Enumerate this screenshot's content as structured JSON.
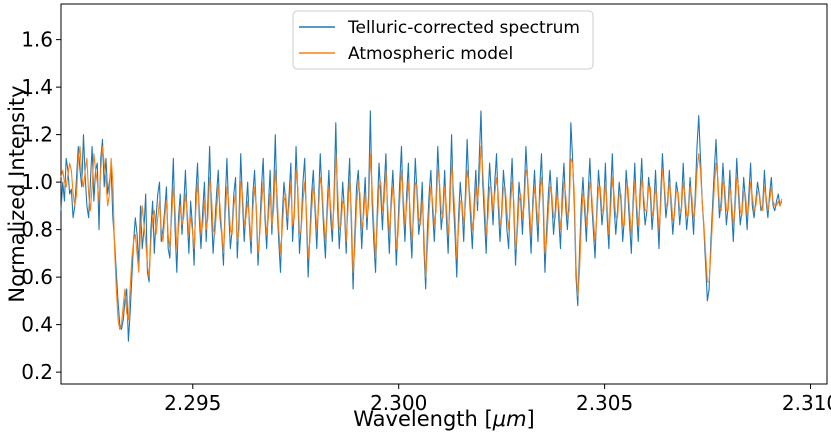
{
  "chart_data": {
    "type": "line",
    "title": "",
    "xlabel_text": "Wavelength [",
    "xlabel_unit": "μm",
    "xlabel_close": "]",
    "ylabel": "Normalized Intensity",
    "xlim": [
      2.2918,
      2.3104
    ],
    "ylim": [
      0.15,
      1.75
    ],
    "xticks": [
      2.295,
      2.3,
      2.305,
      2.31
    ],
    "xtick_labels": [
      "2.295",
      "2.300",
      "2.305",
      "2.310"
    ],
    "yticks": [
      0.2,
      0.4,
      0.6,
      0.8,
      1.0,
      1.2,
      1.4,
      1.6
    ],
    "ytick_labels": [
      "0.2",
      "0.4",
      "0.6",
      "0.8",
      "1.0",
      "1.2",
      "1.4",
      "1.6"
    ],
    "legend_position": "upper-center",
    "x_range": [
      2.2918,
      2.3093
    ],
    "num_points": 440,
    "series": [
      {
        "name": "Telluric-corrected spectrum",
        "color": "#1f77b4",
        "values": [
          0.88,
          1.0,
          0.92,
          1.1,
          1.05,
          0.95,
          0.97,
          0.85,
          0.9,
          1.02,
          1.15,
          1.05,
          0.98,
          1.2,
          1.02,
          0.9,
          0.85,
          1.0,
          1.15,
          0.92,
          1.05,
          1.08,
          0.8,
          1.1,
          1.18,
          0.98,
          1.1,
          0.95,
          1.0,
          1.06,
          0.85,
          0.75,
          0.62,
          0.5,
          0.4,
          0.38,
          0.42,
          0.5,
          0.55,
          0.33,
          0.45,
          0.6,
          0.75,
          0.85,
          0.78,
          0.65,
          0.9,
          0.72,
          0.8,
          0.95,
          0.62,
          0.58,
          0.8,
          0.92,
          0.7,
          0.85,
          0.95,
          1.0,
          0.75,
          0.8,
          0.88,
          0.98,
          0.72,
          0.68,
          0.9,
          1.1,
          0.8,
          0.62,
          0.85,
          0.95,
          0.78,
          0.9,
          1.05,
          0.85,
          0.7,
          0.92,
          0.82,
          0.65,
          0.95,
          1.08,
          0.85,
          0.72,
          0.88,
          1.0,
          0.75,
          0.92,
          1.15,
          0.88,
          0.7,
          0.82,
          0.95,
          1.05,
          0.85,
          0.78,
          0.65,
          0.92,
          1.1,
          0.88,
          0.72,
          0.8,
          0.95,
          1.02,
          0.68,
          0.85,
          1.12,
          0.92,
          0.75,
          0.88,
          1.0,
          0.82,
          0.7,
          0.95,
          1.05,
          0.88,
          0.65,
          0.8,
          0.98,
          1.1,
          0.85,
          0.72,
          0.9,
          1.05,
          0.78,
          0.95,
          1.2,
          0.9,
          0.75,
          0.62,
          0.85,
          1.0,
          0.92,
          0.8,
          0.95,
          1.08,
          0.75,
          0.88,
          1.15,
          0.95,
          0.7,
          0.82,
          1.0,
          1.1,
          0.85,
          0.6,
          0.78,
          0.95,
          1.05,
          0.88,
          0.72,
          0.92,
          1.12,
          0.95,
          0.8,
          0.68,
          0.9,
          1.05,
          0.85,
          0.75,
          0.95,
          1.25,
          0.9,
          0.72,
          0.85,
          1.0,
          0.88,
          0.7,
          0.95,
          1.1,
          0.82,
          0.55,
          0.78,
          0.98,
          1.05,
          0.9,
          0.72,
          0.88,
          1.02,
          0.8,
          0.95,
          1.3,
          0.92,
          0.75,
          0.62,
          0.88,
          1.08,
          0.95,
          0.8,
          0.98,
          1.12,
          0.85,
          0.7,
          0.92,
          1.05,
          0.88,
          0.65,
          0.82,
          1.0,
          1.15,
          0.9,
          0.75,
          0.95,
          1.08,
          0.82,
          0.68,
          0.9,
          1.1,
          0.95,
          0.78,
          0.85,
          1.0,
          0.72,
          0.55,
          0.8,
          0.95,
          1.05,
          0.88,
          0.75,
          0.92,
          1.15,
          0.98,
          0.8,
          0.88,
          1.05,
          0.85,
          0.7,
          0.95,
          1.2,
          0.92,
          0.78,
          0.6,
          0.85,
          1.0,
          0.9,
          0.75,
          0.95,
          1.18,
          0.98,
          0.85,
          0.72,
          0.9,
          1.05,
          0.88,
          1.1,
          1.3,
          1.0,
          0.85,
          0.7,
          0.92,
          1.08,
          0.95,
          0.82,
          1.0,
          1.12,
          0.9,
          0.75,
          0.88,
          1.05,
          0.95,
          0.8,
          0.72,
          0.95,
          1.1,
          0.88,
          0.65,
          0.82,
          1.0,
          0.92,
          0.78,
          0.95,
          1.15,
          1.0,
          0.85,
          0.7,
          0.92,
          1.05,
          0.88,
          0.75,
          0.98,
          1.12,
          0.9,
          0.62,
          0.8,
          0.95,
          1.05,
          0.92,
          0.78,
          0.88,
          1.02,
          0.85,
          0.72,
          0.95,
          1.08,
          0.9,
          0.8,
          0.92,
          1.25,
          1.1,
          0.9,
          0.6,
          0.48,
          0.7,
          0.9,
          1.02,
          0.88,
          0.75,
          0.95,
          1.1,
          0.92,
          0.8,
          0.68,
          0.88,
          1.05,
          0.95,
          0.82,
          0.9,
          1.08,
          0.85,
          0.72,
          0.95,
          1.12,
          0.9,
          0.78,
          0.88,
          1.0,
          0.92,
          0.75,
          0.85,
          1.05,
          0.95,
          0.82,
          0.7,
          0.92,
          1.08,
          0.88,
          0.75,
          0.95,
          1.1,
          0.92,
          0.82,
          0.88,
          1.02,
          0.95,
          0.8,
          0.9,
          1.05,
          0.88,
          0.72,
          0.95,
          1.12,
          0.98,
          0.85,
          0.92,
          1.05,
          0.9,
          0.78,
          0.88,
          1.0,
          0.95,
          0.82,
          0.9,
          1.08,
          0.92,
          0.8,
          0.88,
          1.02,
          0.9,
          0.78,
          0.95,
          1.15,
          1.28,
          1.1,
          0.92,
          0.8,
          0.65,
          0.5,
          0.55,
          0.75,
          0.9,
          1.05,
          1.18,
          1.0,
          0.85,
          0.92,
          1.08,
          0.95,
          0.82,
          0.9,
          1.05,
          0.88,
          0.75,
          0.92,
          1.1,
          0.95,
          0.82,
          0.88,
          1.02,
          0.92,
          0.8,
          0.95,
          1.08,
          0.9,
          0.85,
          0.92,
          1.0,
          0.95,
          0.88,
          0.9,
          1.05,
          0.92,
          0.85,
          0.95,
          1.02,
          0.9,
          0.88,
          0.92,
          0.95,
          0.9,
          0.92
        ]
      },
      {
        "name": "Atmospheric model",
        "color": "#ff7f0e",
        "values": [
          1.02,
          1.05,
          1.0,
          0.98,
          1.03,
          1.08,
          1.05,
          0.95,
          0.9,
          0.95,
          1.1,
          1.15,
          1.02,
          0.98,
          1.05,
          1.1,
          0.95,
          0.88,
          0.98,
          1.12,
          1.05,
          1.0,
          0.92,
          1.05,
          1.15,
          1.08,
          1.0,
          0.9,
          0.95,
          1.1,
          1.0,
          0.72,
          0.55,
          0.42,
          0.38,
          0.4,
          0.48,
          0.55,
          0.45,
          0.42,
          0.55,
          0.68,
          0.75,
          0.78,
          0.7,
          0.62,
          0.8,
          0.9,
          0.82,
          0.75,
          0.65,
          0.6,
          0.75,
          0.85,
          0.88,
          0.78,
          0.85,
          0.92,
          0.8,
          0.75,
          0.85,
          0.92,
          0.78,
          0.72,
          0.85,
          0.98,
          0.88,
          0.72,
          0.8,
          0.9,
          0.82,
          0.85,
          0.95,
          0.88,
          0.78,
          0.85,
          0.8,
          0.72,
          0.88,
          1.0,
          0.9,
          0.78,
          0.82,
          0.92,
          0.8,
          0.85,
          1.02,
          0.95,
          0.8,
          0.78,
          0.88,
          0.98,
          0.9,
          0.8,
          0.7,
          0.85,
          0.98,
          0.92,
          0.8,
          0.78,
          0.9,
          0.95,
          0.75,
          0.8,
          1.0,
          0.95,
          0.82,
          0.85,
          0.92,
          0.85,
          0.75,
          0.88,
          0.98,
          0.9,
          0.7,
          0.78,
          0.9,
          1.0,
          0.88,
          0.78,
          0.85,
          0.95,
          0.82,
          0.88,
          1.05,
          0.95,
          0.8,
          0.7,
          0.8,
          0.92,
          0.95,
          0.85,
          0.9,
          1.0,
          0.82,
          0.85,
          1.05,
          0.98,
          0.78,
          0.8,
          0.92,
          1.0,
          0.88,
          0.68,
          0.75,
          0.88,
          0.98,
          0.92,
          0.8,
          0.88,
          1.02,
          0.98,
          0.85,
          0.75,
          0.85,
          0.98,
          0.9,
          0.8,
          0.9,
          1.12,
          0.98,
          0.8,
          0.82,
          0.92,
          0.9,
          0.75,
          0.88,
          1.02,
          0.88,
          0.62,
          0.72,
          0.9,
          1.0,
          0.95,
          0.8,
          0.85,
          0.95,
          0.85,
          0.9,
          1.12,
          0.98,
          0.82,
          0.68,
          0.82,
          0.98,
          1.0,
          0.88,
          0.92,
          1.05,
          0.9,
          0.78,
          0.88,
          0.98,
          0.92,
          0.72,
          0.78,
          0.92,
          1.05,
          0.95,
          0.82,
          0.9,
          1.0,
          0.88,
          0.75,
          0.85,
          1.0,
          0.98,
          0.85,
          0.82,
          0.92,
          0.78,
          0.6,
          0.72,
          0.88,
          0.98,
          0.92,
          0.82,
          0.88,
          1.05,
          1.0,
          0.88,
          0.85,
          0.98,
          0.9,
          0.78,
          0.88,
          1.08,
          0.98,
          0.85,
          0.68,
          0.8,
          0.92,
          0.92,
          0.82,
          0.9,
          1.05,
          1.0,
          0.9,
          0.8,
          0.85,
          0.98,
          0.92,
          1.0,
          1.15,
          1.05,
          0.92,
          0.78,
          0.85,
          0.98,
          0.98,
          0.88,
          0.95,
          1.02,
          0.95,
          0.82,
          0.85,
          0.98,
          0.98,
          0.88,
          0.8,
          0.9,
          1.0,
          0.92,
          0.72,
          0.78,
          0.92,
          0.95,
          0.85,
          0.9,
          1.05,
          1.02,
          0.9,
          0.78,
          0.88,
          0.98,
          0.92,
          0.82,
          0.92,
          1.02,
          0.95,
          0.7,
          0.75,
          0.88,
          0.98,
          0.95,
          0.85,
          0.85,
          0.95,
          0.9,
          0.8,
          0.88,
          1.0,
          0.95,
          0.85,
          0.88,
          1.1,
          1.08,
          0.95,
          0.65,
          0.52,
          0.62,
          0.82,
          0.95,
          0.92,
          0.82,
          0.88,
          1.0,
          0.95,
          0.85,
          0.75,
          0.85,
          0.98,
          0.98,
          0.88,
          0.88,
          1.0,
          0.9,
          0.78,
          0.88,
          1.02,
          0.95,
          0.85,
          0.85,
          0.95,
          0.95,
          0.82,
          0.82,
          0.98,
          0.98,
          0.88,
          0.78,
          0.88,
          1.0,
          0.92,
          0.82,
          0.9,
          1.02,
          0.95,
          0.88,
          0.88,
          0.98,
          0.98,
          0.86,
          0.88,
          0.98,
          0.92,
          0.8,
          0.9,
          1.05,
          1.0,
          0.9,
          0.9,
          1.0,
          0.94,
          0.84,
          0.86,
          0.96,
          0.96,
          0.88,
          0.88,
          1.0,
          0.95,
          0.86,
          0.86,
          0.98,
          0.94,
          0.84,
          0.9,
          1.05,
          1.12,
          1.05,
          0.92,
          0.82,
          0.7,
          0.58,
          0.58,
          0.7,
          0.85,
          0.98,
          1.08,
          1.02,
          0.9,
          0.88,
          1.0,
          0.98,
          0.88,
          0.88,
          0.98,
          0.92,
          0.82,
          0.88,
          1.02,
          0.98,
          0.88,
          0.86,
          0.96,
          0.95,
          0.86,
          0.9,
          1.0,
          0.94,
          0.88,
          0.9,
          0.96,
          0.96,
          0.9,
          0.88,
          0.98,
          0.94,
          0.88,
          0.92,
          0.98,
          0.92,
          0.9,
          0.9,
          0.92,
          0.9,
          0.93
        ]
      }
    ]
  }
}
